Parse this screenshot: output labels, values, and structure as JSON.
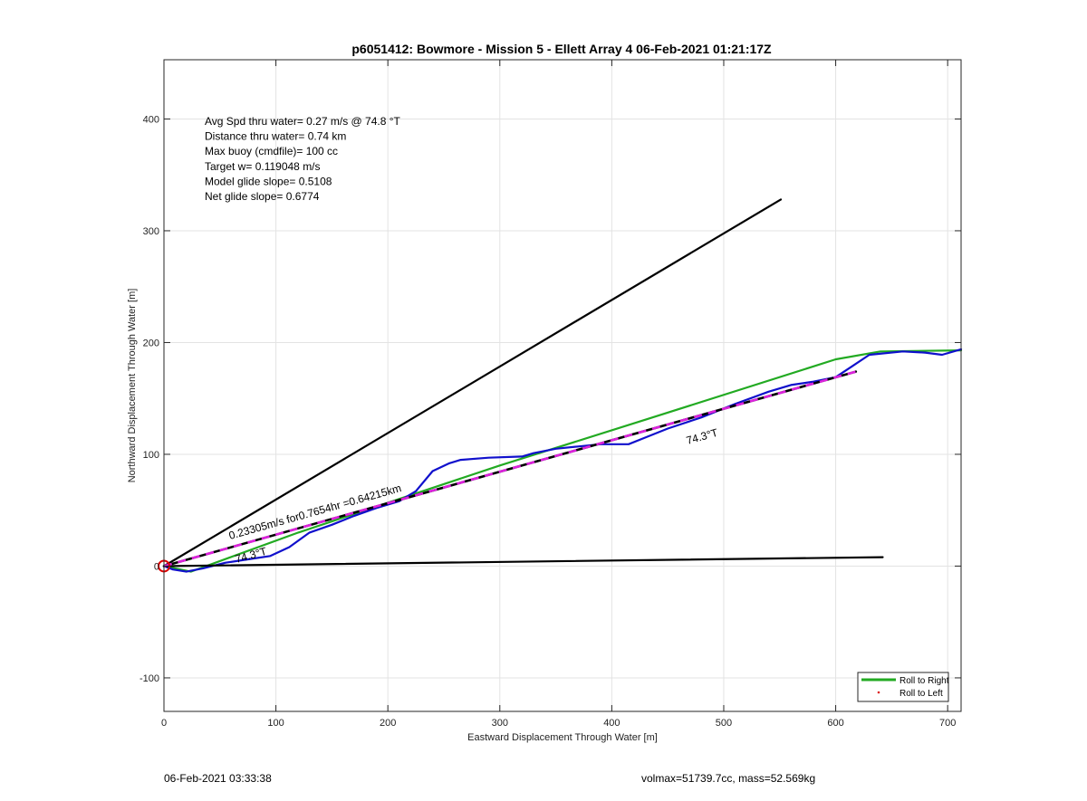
{
  "footer": {
    "date": "06-Feb-2021 03:33:38",
    "volmax": "volmax=51739.7cc, mass=52.569kg"
  },
  "colors": {
    "roll_right": "#22aa22",
    "roll_left": "#dd2222",
    "track": "#1010cc",
    "fit_dash": "#dd22dd",
    "start_marker": "#dd0000",
    "grid": "#e3e3e3"
  },
  "chart_data": {
    "type": "line",
    "title": "p6051412: Bowmore - Mission 5 - Ellett Array 4 06-Feb-2021 01:21:17Z",
    "xlabel": "Eastward Displacement Through Water [m]",
    "ylabel": "Northward Displacement Through Water [m]",
    "xlim": [
      0,
      712
    ],
    "ylim": [
      -130,
      453
    ],
    "xticks": [
      0,
      100,
      200,
      300,
      400,
      500,
      600,
      700
    ],
    "yticks": [
      -100,
      0,
      100,
      200,
      300,
      400
    ],
    "grid": true,
    "legend_position": "bottom-right",
    "legend": [
      {
        "label": "Roll to Right",
        "marker": "line",
        "color": "#22aa22"
      },
      {
        "label": "Roll to Left",
        "marker": "dot",
        "color": "#dd2222"
      }
    ],
    "stats": [
      "Avg Spd thru water=  0.27 m/s @  74.8 °T",
      "Distance thru water=  0.74 km",
      "Max buoy (cmdfile)= 100 cc",
      "Target w= 0.119048 m/s",
      "Model glide slope= 0.5108",
      "Net glide slope= 0.6774"
    ],
    "annotations": {
      "fit_label": "0.23305m/s for0.7654hr =0.64215km",
      "heading_label": "74.3°T",
      "heading_label_2": "74.3°T"
    },
    "series": [
      {
        "name": "Roll to Right",
        "color": "#22aa22",
        "width": 2.2,
        "points": [
          [
            0,
            0
          ],
          [
            24,
            -5
          ],
          [
            120,
            30
          ],
          [
            300,
            90
          ],
          [
            430,
            131
          ],
          [
            600,
            185
          ],
          [
            640,
            192
          ],
          [
            712,
            193
          ]
        ]
      },
      {
        "color": "#1010cc",
        "width": 2.2,
        "points": [
          [
            0,
            0
          ],
          [
            8,
            -3
          ],
          [
            20,
            -5
          ],
          [
            35,
            -2
          ],
          [
            55,
            3
          ],
          [
            75,
            6
          ],
          [
            95,
            9
          ],
          [
            112,
            17
          ],
          [
            130,
            30
          ],
          [
            150,
            37
          ],
          [
            170,
            45
          ],
          [
            190,
            52
          ],
          [
            210,
            58
          ],
          [
            225,
            67
          ],
          [
            240,
            85
          ],
          [
            255,
            92
          ],
          [
            265,
            95
          ],
          [
            290,
            97
          ],
          [
            320,
            98
          ],
          [
            330,
            101
          ],
          [
            350,
            105
          ],
          [
            370,
            107
          ],
          [
            390,
            109
          ],
          [
            415,
            109
          ],
          [
            430,
            115
          ],
          [
            450,
            123
          ],
          [
            480,
            133
          ],
          [
            510,
            145
          ],
          [
            540,
            156
          ],
          [
            560,
            162
          ],
          [
            580,
            165
          ],
          [
            600,
            169
          ],
          [
            615,
            179
          ],
          [
            630,
            189
          ],
          [
            660,
            192
          ],
          [
            680,
            191
          ],
          [
            695,
            189
          ],
          [
            712,
            194
          ]
        ]
      },
      {
        "color": "#000000",
        "width": 2.2,
        "points": [
          [
            0,
            0
          ],
          [
            551,
            328
          ]
        ]
      },
      {
        "color": "#000000",
        "width": 2.2,
        "points": [
          [
            0,
            0
          ],
          [
            642,
            8
          ]
        ]
      },
      {
        "color": "#000000",
        "width": 2.6,
        "points": [
          [
            0,
            0
          ],
          [
            618,
            174
          ]
        ]
      },
      {
        "color": "#dd22dd",
        "width": 2.6,
        "dash": "9,7",
        "points": [
          [
            0,
            0
          ],
          [
            618,
            174
          ]
        ]
      }
    ],
    "start_marker": [
      0,
      0
    ]
  }
}
